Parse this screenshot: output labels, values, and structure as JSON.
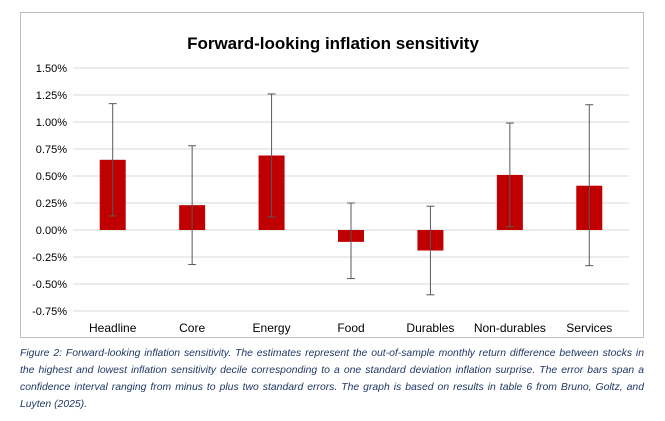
{
  "chart_data": {
    "type": "bar",
    "title": "Forward-looking inflation sensitivity",
    "xlabel": "",
    "ylabel": "",
    "categories": [
      "Headline",
      "Core",
      "Energy",
      "Food",
      "Durables",
      "Non-durables",
      "Services"
    ],
    "values": [
      0.65,
      0.23,
      0.69,
      -0.11,
      -0.19,
      0.51,
      0.41
    ],
    "error_low": [
      0.13,
      -0.32,
      0.12,
      -0.45,
      -0.6,
      0.03,
      -0.33
    ],
    "error_high": [
      1.17,
      0.78,
      1.26,
      0.25,
      0.22,
      0.99,
      1.16
    ],
    "y_ticks": [
      "1.50%",
      "1.25%",
      "1.00%",
      "0.75%",
      "0.50%",
      "0.25%",
      "0.00%",
      "-0.25%",
      "-0.50%",
      "-0.75%"
    ],
    "y_tick_values": [
      1.5,
      1.25,
      1.0,
      0.75,
      0.5,
      0.25,
      0.0,
      -0.25,
      -0.5,
      -0.75
    ],
    "ylim": [
      -0.75,
      1.5
    ],
    "grid": true,
    "bar_color": "#c00000",
    "grid_color": "#d9d9d9",
    "error_bar_color": "#595959"
  },
  "caption": "Figure 2: Forward-looking inflation sensitivity. The estimates represent the out-of-sample monthly return difference between stocks in the highest and lowest inflation sensitivity decile corresponding to a one standard deviation inflation surprise. The error bars span a confidence interval ranging from minus to plus two standard errors. The graph is based on results in table 6 from Bruno, Goltz, and Luyten (2025)."
}
